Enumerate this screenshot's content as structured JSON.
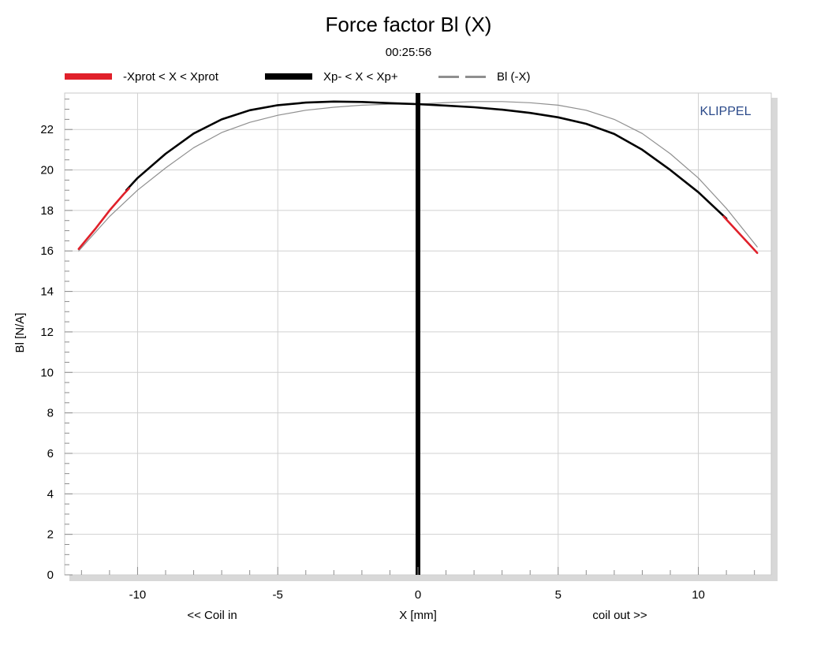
{
  "chart_data": {
    "type": "line",
    "title": "Force factor Bl (X)",
    "subtitle": "00:25:56",
    "xlabel": "X [mm]",
    "ylabel": "Bl [N/A]",
    "x_left_annotation": "<< Coil in",
    "x_right_annotation": "coil out >>",
    "brand": "KLIPPEL",
    "xlim": [
      -12.6,
      12.6
    ],
    "ylim": [
      0,
      23.8
    ],
    "xticks": [
      -10,
      -5,
      0,
      5,
      10
    ],
    "yticks": [
      0,
      2,
      4,
      6,
      8,
      10,
      12,
      14,
      16,
      18,
      20,
      22
    ],
    "grid": true,
    "legend_placement": "top",
    "legend": [
      {
        "label": "-Xprot < X < Xprot",
        "color": "#e0202a",
        "style": "solid-thick"
      },
      {
        "label": "Xp- < X < Xp+",
        "color": "#000000",
        "style": "solid-thick"
      },
      {
        "label": "Bl (-X)",
        "color": "#8f8f8f",
        "style": "dashed"
      }
    ],
    "vertical_marker": {
      "x": 0,
      "color": "#000000"
    },
    "series": [
      {
        "name": "-Xprot < X < Xprot",
        "color": "#e0202a",
        "x": [
          -12.1,
          -11.5,
          -11.0,
          -10.5,
          -10.3
        ],
        "y": [
          16.1,
          17.1,
          18.0,
          18.8,
          19.1
        ]
      },
      {
        "name": "-Xprot < X < Xprot",
        "color": "#e0202a",
        "x": [
          10.9,
          11.3,
          11.7,
          12.1
        ],
        "y": [
          17.7,
          17.1,
          16.5,
          15.9
        ]
      },
      {
        "name": "Xp- < X < Xp+",
        "color": "#000000",
        "x": [
          -10.4,
          -10.0,
          -9.0,
          -8.0,
          -7.0,
          -6.0,
          -5.0,
          -4.0,
          -3.0,
          -2.0,
          -1.0,
          0,
          1.0,
          2.0,
          3.0,
          4.0,
          5.0,
          6.0,
          7.0,
          8.0,
          9.0,
          10.0,
          11.0
        ],
        "y": [
          19.0,
          19.6,
          20.8,
          21.8,
          22.5,
          22.95,
          23.2,
          23.33,
          23.38,
          23.36,
          23.3,
          23.25,
          23.18,
          23.1,
          22.98,
          22.82,
          22.6,
          22.28,
          21.78,
          21.0,
          20.0,
          18.9,
          17.6
        ]
      },
      {
        "name": "Bl (-X)",
        "color": "#8f8f8f",
        "x": [
          -12.1,
          -11.0,
          -10.0,
          -9.0,
          -8.0,
          -7.0,
          -6.0,
          -5.0,
          -4.0,
          -3.0,
          -2.0,
          -1.0,
          0,
          1.0,
          2.0,
          3.0,
          4.0,
          5.0,
          6.0,
          7.0,
          8.0,
          9.0,
          10.0,
          11.0,
          12.1
        ],
        "y": [
          16.0,
          17.7,
          19.0,
          20.1,
          21.1,
          21.85,
          22.35,
          22.7,
          22.95,
          23.1,
          23.2,
          23.25,
          23.25,
          23.33,
          23.38,
          23.38,
          23.32,
          23.2,
          22.95,
          22.5,
          21.8,
          20.8,
          19.6,
          18.1,
          16.2
        ]
      }
    ]
  }
}
